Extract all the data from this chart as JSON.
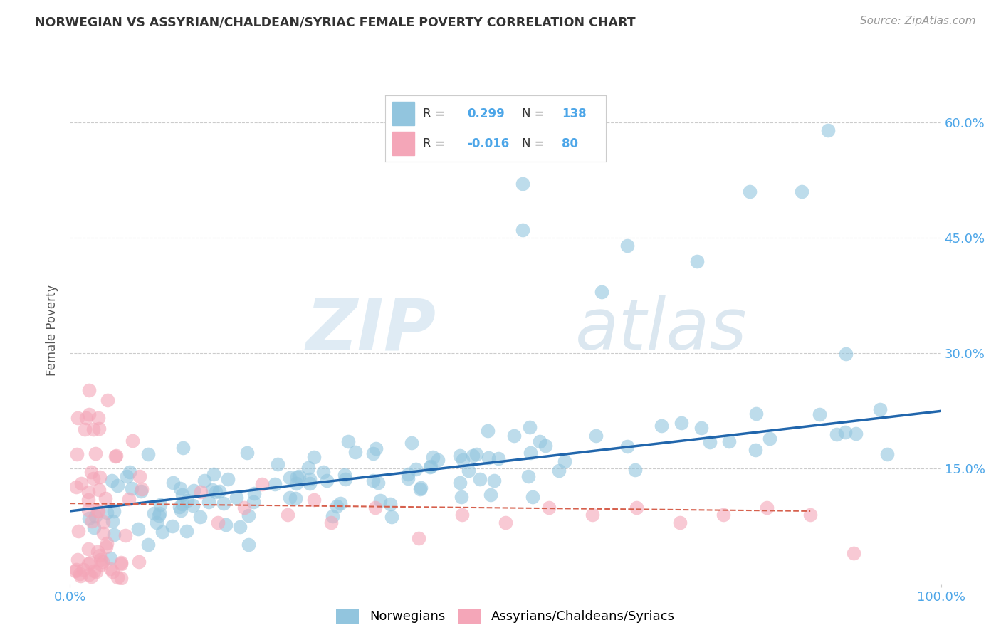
{
  "title": "NORWEGIAN VS ASSYRIAN/CHALDEAN/SYRIAC FEMALE POVERTY CORRELATION CHART",
  "source_text": "Source: ZipAtlas.com",
  "ylabel": "Female Poverty",
  "legend_label_1": "Norwegians",
  "legend_label_2": "Assyrians/Chaldeans/Syriacs",
  "r1_text": "0.299",
  "n1_text": "138",
  "r2_text": "-0.016",
  "n2_text": "80",
  "color_blue": "#92c5de",
  "color_pink": "#f4a6b8",
  "color_trend_blue": "#2166ac",
  "color_trend_pink": "#d6604d",
  "color_grid": "#cccccc",
  "color_title": "#333333",
  "color_source": "#999999",
  "color_axis_labels": "#4da6e8",
  "color_legend_text": "#333333",
  "ylim": [
    0.0,
    0.66
  ],
  "xlim": [
    0.0,
    1.0
  ],
  "yticks": [
    0.0,
    0.15,
    0.3,
    0.45,
    0.6
  ],
  "ytick_labels": [
    "0.0%",
    "15.0%",
    "30.0%",
    "45.0%",
    "60.0%"
  ],
  "watermark_zip": "ZIP",
  "watermark_atlas": "atlas",
  "trend_blue_x0": 0.0,
  "trend_blue_y0": 0.095,
  "trend_blue_x1": 1.0,
  "trend_blue_y1": 0.225,
  "trend_pink_x0": 0.0,
  "trend_pink_y0": 0.105,
  "trend_pink_x1": 0.85,
  "trend_pink_y1": 0.095
}
